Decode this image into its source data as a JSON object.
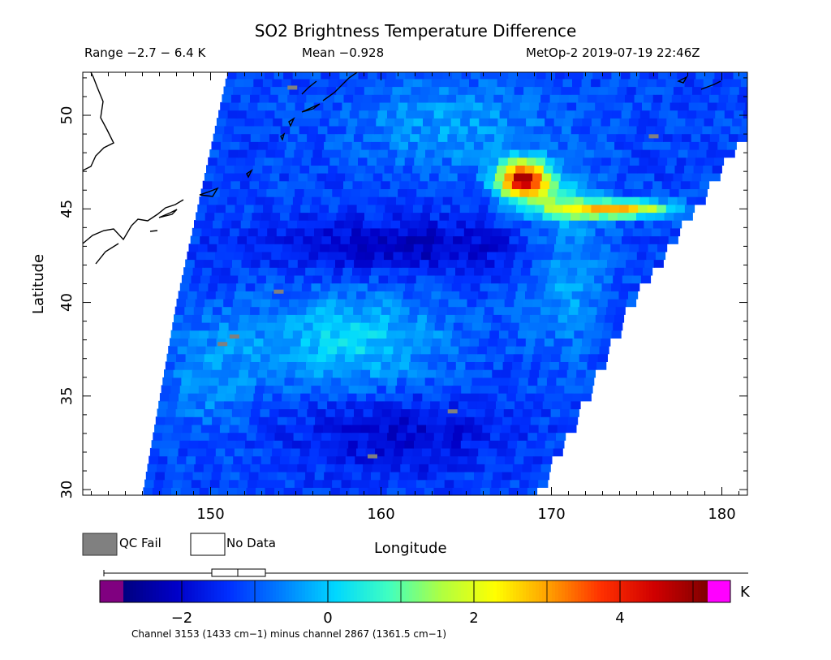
{
  "header": {
    "title": "SO2 Brightness Temperature Difference",
    "range": "Range −2.7 − 6.4 K",
    "mean": "Mean −0.928",
    "satellite_time": "MetOp-2 2019-07-19 22:46Z"
  },
  "legend": {
    "qc_fail": "QC Fail",
    "no_data": "No Data",
    "qc_color": "#808080",
    "no_data_color": "#ffffff"
  },
  "colorbar": {
    "unit": "K",
    "ticks": [
      -2,
      0,
      2,
      4
    ],
    "tick_labels": [
      "−2",
      "0",
      "2",
      "4"
    ],
    "min": -2.8,
    "max": 5.2,
    "under_color": "#800080",
    "over_color": "#ff00ff",
    "colors": [
      "#000080",
      "#0000c8",
      "#0030ff",
      "#0080ff",
      "#00d8ff",
      "#40ffc0",
      "#b0ff40",
      "#ffff00",
      "#ffa000",
      "#ff3000",
      "#d00000",
      "#800000"
    ]
  },
  "footnote": "Channel 3153 (1433 cm−1) minus channel 2867 (1361.5 cm−1)",
  "chart_data": {
    "type": "heatmap",
    "title": "SO2 Brightness Temperature Difference",
    "xlabel": "Longitude",
    "ylabel": "Latitude",
    "xlim": [
      142.5,
      181.5
    ],
    "ylim": [
      29.7,
      52.3
    ],
    "xticks": [
      150,
      160,
      170,
      180
    ],
    "yticks": [
      30,
      35,
      40,
      45,
      50
    ],
    "value_range": [
      -2.7,
      6.4
    ],
    "mean": -0.928,
    "unit": "K",
    "background_value": -1.2,
    "features": [
      {
        "name": "SO2 plume core",
        "lon": 168.2,
        "lat": 46.6,
        "value": 6.0
      },
      {
        "name": "SO2 plume ring",
        "lon": 168.0,
        "lat": 46.6,
        "value": 4.5
      },
      {
        "name": "SO2 plume tail east",
        "lon": 174.5,
        "lat": 45.0,
        "value": 3.0
      },
      {
        "name": "elevated band southeast",
        "lon": 171.0,
        "lat": 41.5,
        "value": 0.3
      },
      {
        "name": "northern enhancement",
        "lon": 164.0,
        "lat": 49.5,
        "value": -0.3
      },
      {
        "name": "cold band",
        "lon": 161.0,
        "lat": 43.0,
        "value": -2.3
      }
    ],
    "qc_fail_points": [
      {
        "lon": 154.8,
        "lat": 51.5
      },
      {
        "lon": 176.0,
        "lat": 48.9
      },
      {
        "lon": 154.0,
        "lat": 40.6
      },
      {
        "lon": 151.4,
        "lat": 38.2
      },
      {
        "lon": 150.7,
        "lat": 37.8
      },
      {
        "lon": 164.2,
        "lat": 34.2
      },
      {
        "lon": 159.5,
        "lat": 31.8
      }
    ],
    "swath_edges": {
      "west": [
        [
          146.0,
          29.7
        ],
        [
          148.0,
          40.0
        ],
        [
          151.0,
          52.3
        ]
      ],
      "east": [
        [
          169.0,
          29.7
        ],
        [
          174.5,
          40.0
        ],
        [
          181.5,
          49.5
        ]
      ]
    }
  }
}
